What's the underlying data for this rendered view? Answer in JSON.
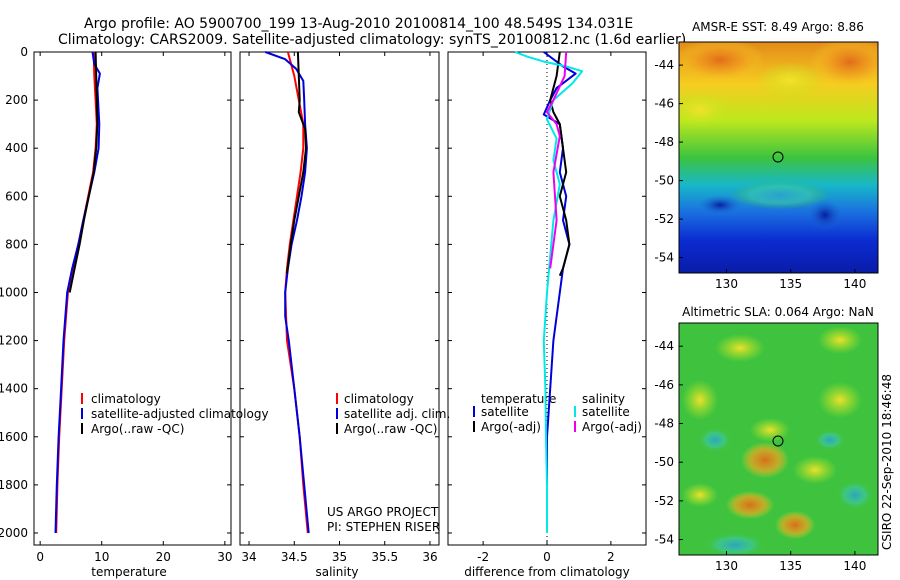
{
  "figure": {
    "title_line1": "Argo profile: AO 5900700_199 13-Aug-2010 20100814_100 48.549S 134.031E",
    "title_line2": "Climatology: CARS2009. Satellite-adjusted climatology: synTS_20100812.nc (1.6d earlier)",
    "credit_line1": "US ARGO PROJECT",
    "credit_line2": "PI: STEPHEN RISER",
    "side_stamp": "CSIRO 22-Sep-2010 18:46:48"
  },
  "colors": {
    "red": "#ff0000",
    "blue": "#0000dd",
    "black": "#000000",
    "cyan": "#00e8e8",
    "magenta": "#ee00ee"
  },
  "chart_data": [
    {
      "id": "temperature",
      "type": "line",
      "xlabel": "temperature",
      "xlim": [
        -1,
        31
      ],
      "xticks": [
        0,
        10,
        20,
        30
      ],
      "ylim": [
        2050,
        0
      ],
      "yticks": [
        0,
        200,
        400,
        600,
        800,
        1000,
        1200,
        1400,
        1600,
        1800,
        2000
      ],
      "legend": {
        "position": "bottom-right",
        "entries": [
          "climatology",
          "satellite-adjusted climatology",
          "Argo(..raw -QC)"
        ]
      },
      "series": [
        {
          "name": "climatology",
          "color": "red",
          "points": [
            [
              8.7,
              0
            ],
            [
              8.8,
              100
            ],
            [
              9.0,
              200
            ],
            [
              9.2,
              300
            ],
            [
              9.0,
              400
            ],
            [
              8.6,
              500
            ],
            [
              7.8,
              600
            ],
            [
              7.0,
              700
            ],
            [
              6.2,
              800
            ],
            [
              5.3,
              900
            ],
            [
              4.5,
              1000
            ],
            [
              3.9,
              1200
            ],
            [
              3.5,
              1400
            ],
            [
              3.1,
              1600
            ],
            [
              2.8,
              1800
            ],
            [
              2.6,
              2000
            ]
          ]
        },
        {
          "name": "satellite-adjusted climatology",
          "color": "blue",
          "points": [
            [
              8.5,
              0
            ],
            [
              8.8,
              50
            ],
            [
              9.7,
              90
            ],
            [
              9.3,
              150
            ],
            [
              9.6,
              300
            ],
            [
              9.5,
              400
            ],
            [
              8.8,
              500
            ],
            [
              7.9,
              600
            ],
            [
              7.0,
              700
            ],
            [
              6.2,
              800
            ],
            [
              5.2,
              900
            ],
            [
              4.4,
              1000
            ],
            [
              3.8,
              1200
            ],
            [
              3.4,
              1400
            ],
            [
              3.0,
              1600
            ],
            [
              2.7,
              1800
            ],
            [
              2.5,
              2000
            ]
          ]
        },
        {
          "name": "Argo(..raw -QC)",
          "color": "black",
          "points": [
            [
              9.0,
              0
            ],
            [
              9.1,
              100
            ],
            [
              9.2,
              200
            ],
            [
              9.3,
              300
            ],
            [
              9.1,
              400
            ],
            [
              8.7,
              500
            ],
            [
              7.9,
              600
            ],
            [
              7.1,
              700
            ],
            [
              6.4,
              800
            ],
            [
              5.6,
              900
            ],
            [
              4.8,
              1000
            ]
          ]
        }
      ]
    },
    {
      "id": "salinity",
      "type": "line",
      "xlabel": "salinity",
      "xlim": [
        33.9,
        36.1
      ],
      "xticks": [
        34,
        34.5,
        35,
        35.5,
        36
      ],
      "ylim": [
        2050,
        0
      ],
      "legend": {
        "position": "bottom-right",
        "entries": [
          "climatology",
          "satellite adj. clim.",
          "Argo(..raw -QC)"
        ]
      },
      "series": [
        {
          "name": "climatology",
          "color": "red",
          "points": [
            [
              34.43,
              0
            ],
            [
              34.5,
              100
            ],
            [
              34.55,
              200
            ],
            [
              34.6,
              300
            ],
            [
              34.6,
              400
            ],
            [
              34.57,
              500
            ],
            [
              34.53,
              600
            ],
            [
              34.49,
              700
            ],
            [
              34.45,
              800
            ],
            [
              34.42,
              900
            ],
            [
              34.4,
              1000
            ],
            [
              34.42,
              1200
            ],
            [
              34.5,
              1400
            ],
            [
              34.56,
              1600
            ],
            [
              34.6,
              1800
            ],
            [
              34.65,
              2000
            ]
          ]
        },
        {
          "name": "satellite adj. clim.",
          "color": "blue",
          "points": [
            [
              34.18,
              0
            ],
            [
              34.4,
              30
            ],
            [
              34.52,
              70
            ],
            [
              34.6,
              120
            ],
            [
              34.61,
              200
            ],
            [
              34.62,
              300
            ],
            [
              34.64,
              400
            ],
            [
              34.62,
              500
            ],
            [
              34.58,
              600
            ],
            [
              34.53,
              700
            ],
            [
              34.47,
              800
            ],
            [
              34.43,
              900
            ],
            [
              34.4,
              1000
            ],
            [
              34.4,
              1100
            ],
            [
              34.44,
              1200
            ],
            [
              34.5,
              1400
            ],
            [
              34.56,
              1600
            ],
            [
              34.61,
              1800
            ],
            [
              34.66,
              2000
            ]
          ]
        },
        {
          "name": "Argo(..raw -QC)",
          "color": "black",
          "points": [
            [
              34.54,
              0
            ],
            [
              34.55,
              100
            ],
            [
              34.56,
              200
            ],
            [
              34.55,
              250
            ],
            [
              34.62,
              320
            ],
            [
              34.63,
              400
            ],
            [
              34.6,
              500
            ],
            [
              34.55,
              600
            ],
            [
              34.5,
              700
            ],
            [
              34.46,
              800
            ],
            [
              34.42,
              920
            ]
          ]
        }
      ]
    },
    {
      "id": "difference",
      "type": "line",
      "xlabel": "difference from climatology",
      "xlim": [
        -3.1,
        3.1
      ],
      "xticks": [
        -2,
        0,
        2
      ],
      "ylim": [
        2050,
        0
      ],
      "legend": {
        "position": "bottom-right",
        "groups": [
          {
            "heading": "temperature",
            "entries": [
              "satellite",
              "Argo(-adj)"
            ]
          },
          {
            "heading": "salinity",
            "entries": [
              "satellite",
              "Argo(-adj)"
            ]
          }
        ]
      },
      "series": [
        {
          "name": "temperature satellite",
          "color": "blue",
          "points": [
            [
              -0.1,
              0
            ],
            [
              0.5,
              60
            ],
            [
              0.9,
              90
            ],
            [
              0.3,
              150
            ],
            [
              0.1,
              200
            ],
            [
              -0.1,
              260
            ],
            [
              0.4,
              300
            ],
            [
              0.5,
              400
            ],
            [
              0.4,
              500
            ],
            [
              0.6,
              600
            ],
            [
              0.5,
              700
            ],
            [
              0.7,
              800
            ],
            [
              0.5,
              900
            ],
            [
              0.4,
              1000
            ],
            [
              0.2,
              1200
            ],
            [
              0.1,
              1400
            ],
            [
              0.0,
              1600
            ],
            [
              0.0,
              1800
            ],
            [
              0.0,
              2000
            ]
          ]
        },
        {
          "name": "temperature Argo(-adj)",
          "color": "black",
          "points": [
            [
              0.4,
              0
            ],
            [
              0.3,
              100
            ],
            [
              0.1,
              200
            ],
            [
              0.2,
              250
            ],
            [
              0.4,
              300
            ],
            [
              0.5,
              400
            ],
            [
              0.6,
              500
            ],
            [
              0.4,
              600
            ],
            [
              0.6,
              700
            ],
            [
              0.7,
              800
            ],
            [
              0.5,
              900
            ],
            [
              0.4,
              930
            ]
          ]
        },
        {
          "name": "salinity satellite",
          "color": "cyan",
          "points": [
            [
              -1.0,
              0
            ],
            [
              -0.6,
              20
            ],
            [
              -0.1,
              40
            ],
            [
              0.6,
              60
            ],
            [
              1.1,
              80
            ],
            [
              0.8,
              130
            ],
            [
              0.2,
              200
            ],
            [
              0.0,
              280
            ],
            [
              0.3,
              360
            ],
            [
              0.2,
              450
            ],
            [
              0.4,
              550
            ],
            [
              0.2,
              700
            ],
            [
              0.1,
              850
            ],
            [
              0.0,
              1000
            ],
            [
              -0.1,
              1200
            ],
            [
              -0.05,
              1400
            ],
            [
              -0.03,
              1600
            ],
            [
              0.0,
              1800
            ],
            [
              0.0,
              2000
            ]
          ]
        },
        {
          "name": "salinity Argo(-adj)",
          "color": "magenta",
          "points": [
            [
              0.6,
              0
            ],
            [
              0.55,
              100
            ],
            [
              0.2,
              200
            ],
            [
              0.0,
              250
            ],
            [
              0.3,
              300
            ],
            [
              0.4,
              350
            ],
            [
              0.2,
              500
            ],
            [
              0.3,
              700
            ],
            [
              0.1,
              900
            ]
          ]
        }
      ]
    },
    {
      "id": "sst-map",
      "type": "heatmap",
      "title": "AMSR-E SST: 8.49  Argo: 8.86",
      "xticks": [
        130,
        135,
        140
      ],
      "yticks": [
        -44,
        -46,
        -48,
        -50,
        -52,
        -54
      ],
      "xlim": [
        126.3,
        141.8
      ],
      "ylim": [
        -54.8,
        -42.8
      ],
      "marker": {
        "lon": 134.0,
        "lat": -48.55
      }
    },
    {
      "id": "sla-map",
      "type": "heatmap",
      "title": "Altimetric SLA: 0.064  Argo: NaN",
      "xticks": [
        130,
        135,
        140
      ],
      "yticks": [
        -44,
        -46,
        -48,
        -50,
        -52,
        -54
      ],
      "xlim": [
        126.3,
        141.8
      ],
      "ylim": [
        -54.8,
        -42.8
      ],
      "marker": {
        "lon": 134.0,
        "lat": -48.55
      }
    }
  ]
}
